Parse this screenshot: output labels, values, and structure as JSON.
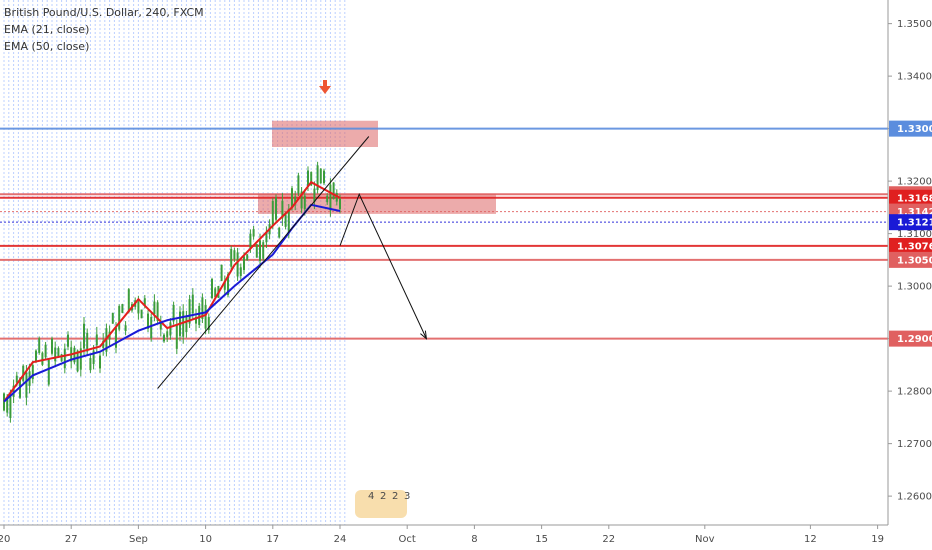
{
  "header": {
    "symbol_line": "British Pound/U.S. Dollar, 240, FXCM",
    "indicators": [
      "EMA (21, close)",
      "EMA (50, close)"
    ]
  },
  "chart_data": {
    "type": "line",
    "title": "British Pound/U.S. Dollar, 240, FXCM",
    "xlabel": "",
    "ylabel": "",
    "x_ticks": [
      "20",
      "27",
      "Sep",
      "10",
      "17",
      "24",
      "Oct",
      "8",
      "15",
      "22",
      "Nov",
      "12",
      "19"
    ],
    "y_ticks": [
      1.35,
      1.34,
      1.33,
      1.32,
      1.31,
      1.3,
      1.29,
      1.28,
      1.27,
      1.26
    ],
    "y_tick_labels": [
      "1.35000",
      "1.34000",
      "1.33000",
      "1.32000",
      "1.31000",
      "1.30000",
      "1.29000",
      "1.28000",
      "1.27000",
      "1.26000"
    ],
    "ylim": [
      1.2545,
      1.3545
    ],
    "grid": true,
    "colors": {
      "ema21": "#e41e1e",
      "ema50": "#1a1ad6",
      "candle": "#3b9c3b",
      "level_blue": "#6fa0e8",
      "level_red": "#e06060",
      "zone_fill": "#dd6666",
      "grid": "#bcd0ff",
      "arrow": "#ee5533"
    },
    "series": [
      {
        "name": "EMA (21, close)",
        "x": [
          "Aug 20",
          "Aug 23",
          "Aug 27",
          "Aug 30",
          "Sep 3",
          "Sep 6",
          "Sep 10",
          "Sep 13",
          "Sep 17",
          "Sep 19",
          "Sep 21",
          "Sep 24"
        ],
        "values": [
          1.278,
          1.2855,
          1.287,
          1.2885,
          1.2975,
          1.292,
          1.2945,
          1.304,
          1.3115,
          1.315,
          1.3198,
          1.3168
        ]
      },
      {
        "name": "EMA (50, close)",
        "x": [
          "Aug 20",
          "Aug 23",
          "Aug 27",
          "Aug 30",
          "Sep 3",
          "Sep 6",
          "Sep 10",
          "Sep 13",
          "Sep 17",
          "Sep 19",
          "Sep 21",
          "Sep 24"
        ],
        "values": [
          1.278,
          1.283,
          1.286,
          1.2875,
          1.2915,
          1.2935,
          1.295,
          1.3,
          1.306,
          1.311,
          1.3155,
          1.3143
        ]
      }
    ],
    "levels": [
      {
        "value": 1.33,
        "label": "1.33000",
        "color": "#5b8dde"
      },
      {
        "value": 1.3175,
        "label": "1.31750",
        "color": "#e06060"
      },
      {
        "value": 1.31683,
        "label": "1.31683",
        "color": "#e02020"
      },
      {
        "value": 1.3142,
        "label": "1.31420",
        "color": "#e06060"
      },
      {
        "value": 1.31218,
        "label": "1.31218",
        "color": "#1a1ad6"
      },
      {
        "value": 1.30766,
        "label": "1.30766",
        "color": "#e02020"
      },
      {
        "value": 1.305,
        "label": "1.30500",
        "color": "#e06060"
      },
      {
        "value": 1.29,
        "label": "1.29000",
        "color": "#e06060"
      }
    ],
    "zones": [
      {
        "from": 1.3265,
        "to": 1.3315
      },
      {
        "from": 1.3168,
        "to": 1.3176
      }
    ],
    "projection": {
      "points": [
        [
          "Sep 24",
          1.3077
        ],
        [
          "Sep 26",
          1.3175
        ],
        [
          "Oct 3",
          1.29
        ]
      ]
    },
    "trendline": {
      "from": [
        "Sep 5",
        1.2805
      ],
      "to": [
        "Sep 27",
        1.3285
      ]
    },
    "event_badge": [
      "4",
      "2",
      "2",
      "3"
    ]
  }
}
